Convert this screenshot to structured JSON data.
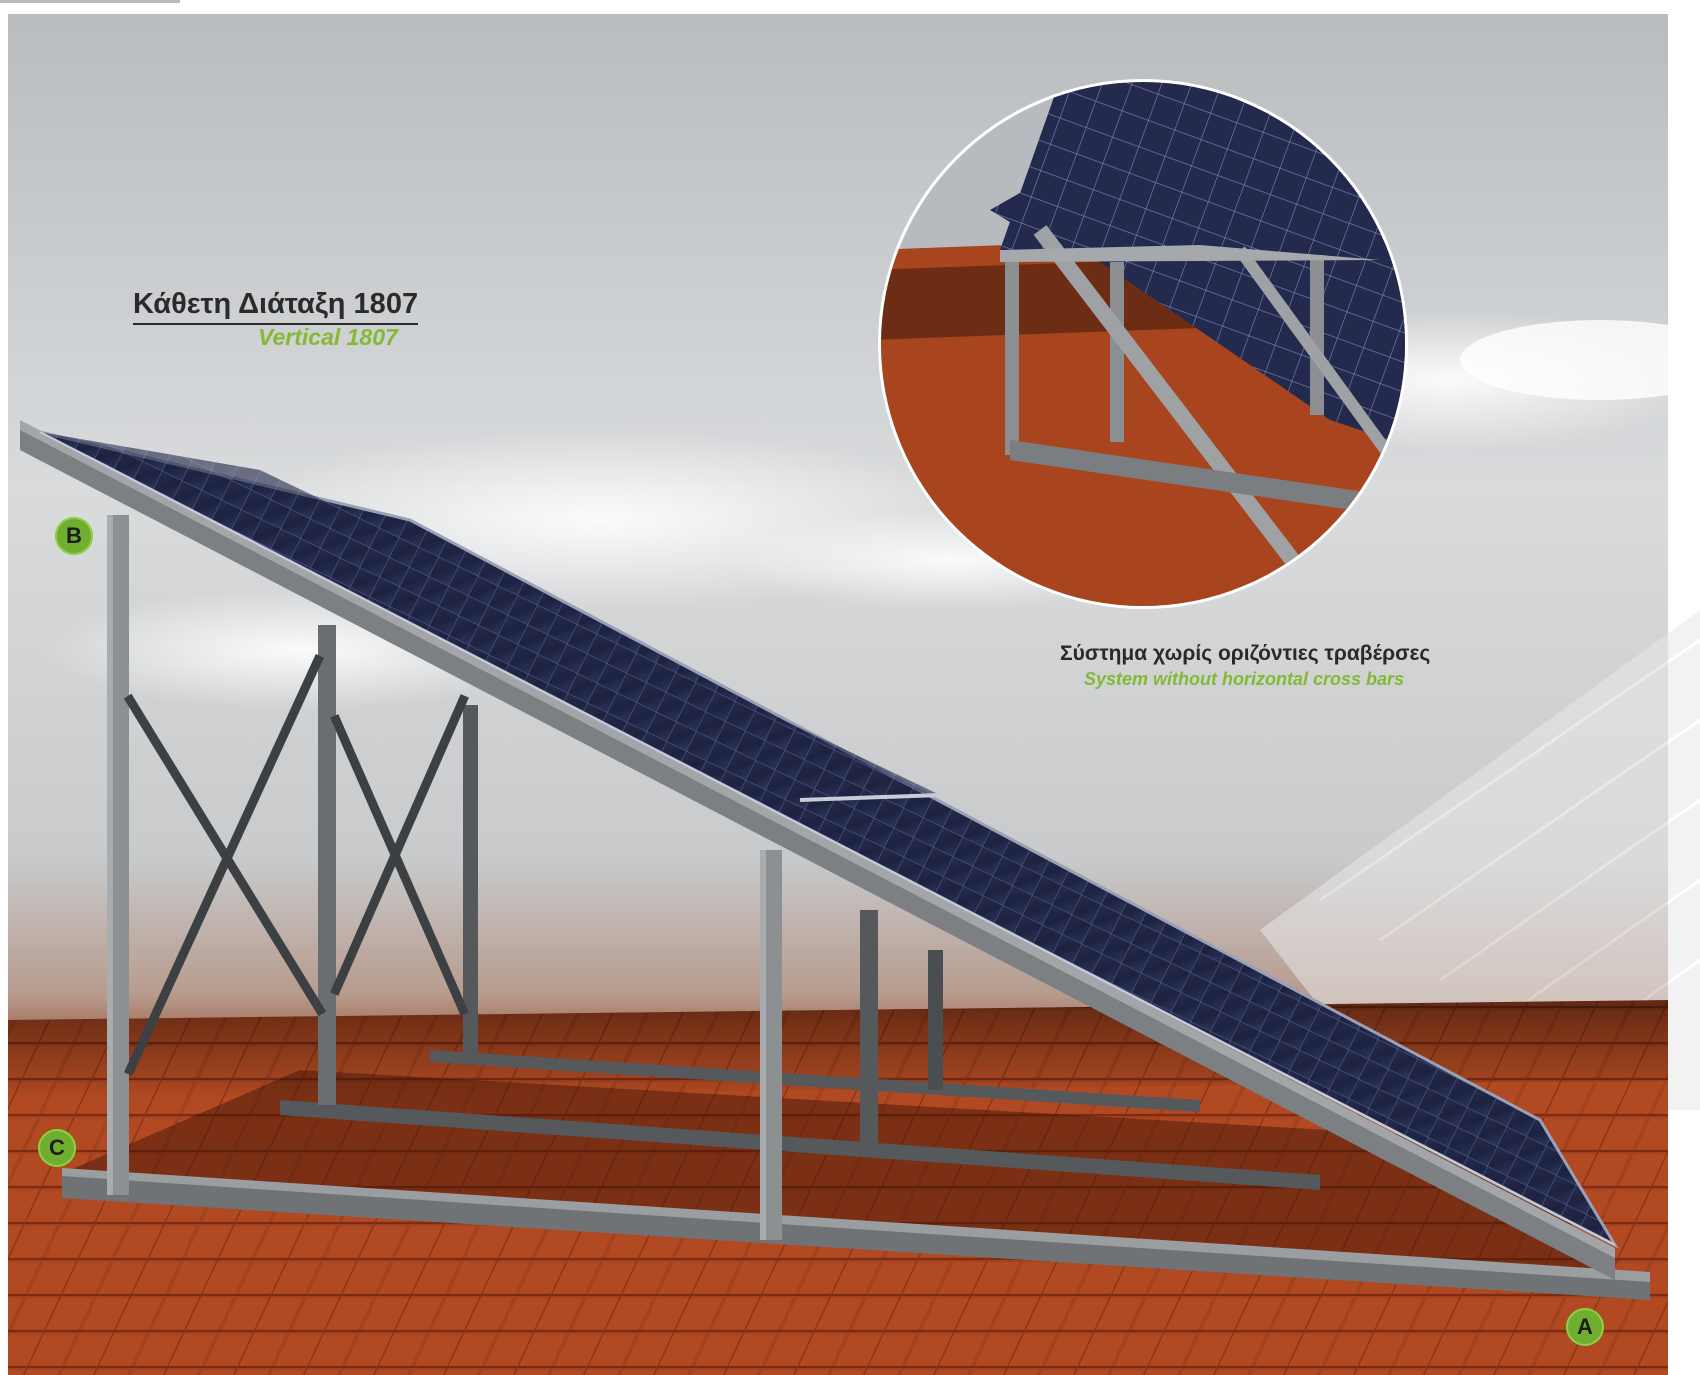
{
  "heading": {
    "title": "Κάθετη Διάταξη 1807",
    "subtitle": "Vertical 1807"
  },
  "inset": {
    "caption": "Σύστημα χωρίς οριζόντιες τραβέρσες",
    "caption_sub": "System without horizontal cross bars"
  },
  "markers": {
    "a": "A",
    "b": "B",
    "c": "C"
  },
  "colors": {
    "accent_green": "#84b935",
    "marker_green": "#6fae2e",
    "roof_tile": "#9c3a1c",
    "frame_gray": "#8a8d90",
    "panel_blue": "#1f2540"
  }
}
